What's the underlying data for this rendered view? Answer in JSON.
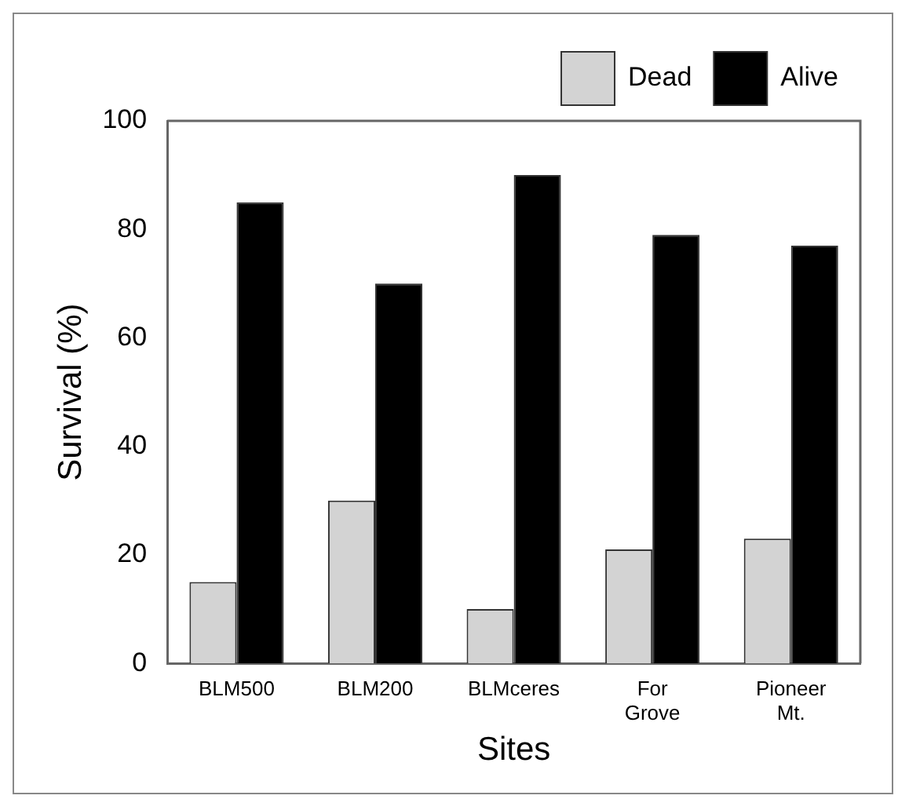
{
  "chart_data": {
    "type": "bar",
    "xlabel": "Sites",
    "ylabel": "Survival (%)",
    "categories": [
      "BLM500",
      "BLM200",
      "BLMceres",
      "For Grove",
      "Pioneer Mt."
    ],
    "series": [
      {
        "name": "Dead",
        "color": "#d3d3d3",
        "values": [
          15,
          30,
          10,
          21,
          23
        ]
      },
      {
        "name": "Alive",
        "color": "#000000",
        "values": [
          85,
          70,
          90,
          79,
          77
        ]
      }
    ],
    "ylim": [
      0,
      100
    ],
    "yticks": [
      0,
      20,
      40,
      60,
      80,
      100
    ],
    "grid": false,
    "legend": "top right"
  }
}
